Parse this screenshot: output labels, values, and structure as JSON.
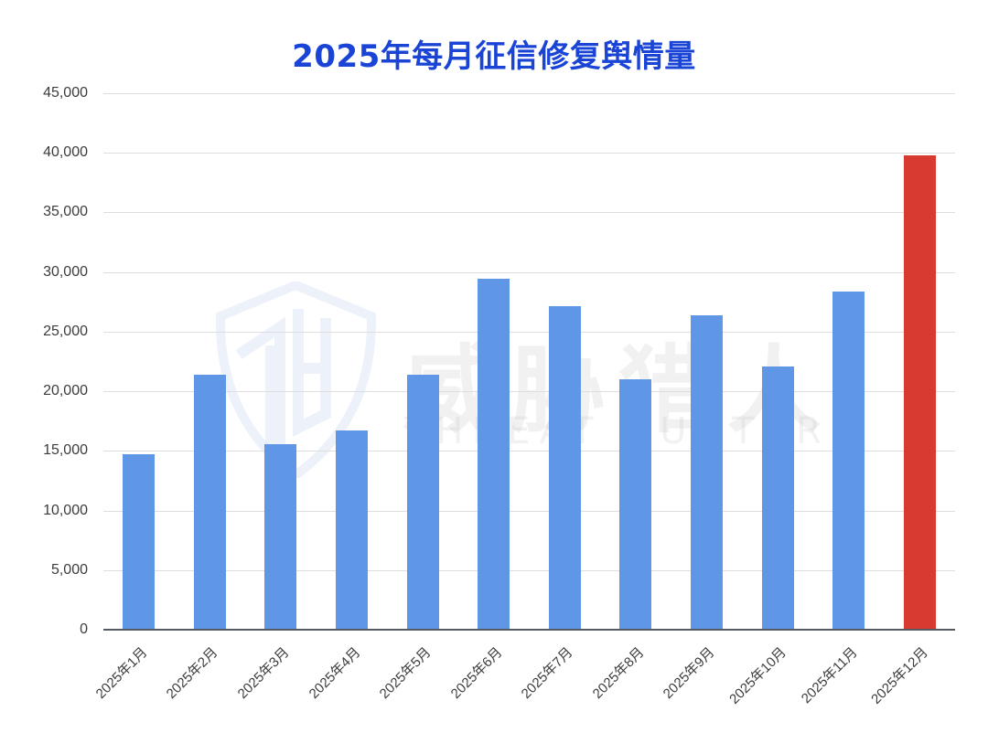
{
  "chart_data": {
    "type": "bar",
    "title": "2025年每月征信修复舆情量",
    "xlabel": "",
    "ylabel": "",
    "ylim": [
      0,
      45000
    ],
    "yticks": [
      "0",
      "5,000",
      "10,000",
      "15,000",
      "20,000",
      "25,000",
      "30,000",
      "35,000",
      "40,000",
      "45,000"
    ],
    "grid": true,
    "legend": null,
    "categories": [
      "2025年1月",
      "2025年2月",
      "2025年3月",
      "2025年4月",
      "2025年5月",
      "2025年6月",
      "2025年7月",
      "2025年8月",
      "2025年9月",
      "2025年10月",
      "2025年11月",
      "2025年12月"
    ],
    "values": [
      14700,
      21400,
      15600,
      16700,
      21400,
      29400,
      27100,
      21000,
      26400,
      22100,
      28400,
      39800
    ],
    "colors": {
      "default_bar": "#5f96e6",
      "highlight_bar": "#d83a30",
      "title": "#1a44d6",
      "gridline": "#dedede",
      "axis": "#555a60"
    },
    "highlight_index": 11
  },
  "watermark": {
    "logo": "TH",
    "cn": "威胁猎人",
    "en": "THREAT HUNTER"
  }
}
